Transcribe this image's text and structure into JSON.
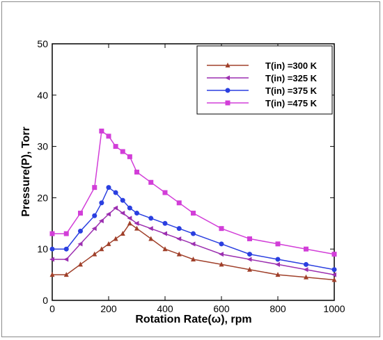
{
  "chart_data": {
    "type": "line",
    "xlabel": "Rotation Rate(ω), rpm",
    "ylabel": "Pressure(P), Torr",
    "xlim": [
      0,
      1000
    ],
    "ylim": [
      0,
      50
    ],
    "xticks": [
      0,
      200,
      400,
      600,
      800,
      1000
    ],
    "yticks": [
      0,
      10,
      20,
      30,
      40,
      50
    ],
    "grid": false,
    "legend_position": "top-right",
    "series": [
      {
        "name": "T(in) =300 K",
        "color": "#a0402a",
        "marker": "triangle-up",
        "x": [
          0,
          50,
          100,
          150,
          175,
          200,
          225,
          250,
          275,
          300,
          350,
          400,
          450,
          500,
          600,
          700,
          800,
          900,
          1000
        ],
        "y": [
          5,
          5,
          7,
          9,
          10,
          11,
          12,
          13,
          15,
          14,
          12,
          10,
          9,
          8,
          7,
          6,
          5,
          4.5,
          4
        ]
      },
      {
        "name": "T(in) =325 K",
        "color": "#9c2fb0",
        "marker": "triangle-left",
        "x": [
          0,
          50,
          100,
          150,
          175,
          200,
          225,
          250,
          275,
          300,
          350,
          400,
          450,
          500,
          600,
          700,
          800,
          900,
          1000
        ],
        "y": [
          8,
          8,
          11,
          14,
          15.5,
          16.8,
          18,
          17,
          16,
          15,
          14,
          13,
          12,
          11,
          9,
          8,
          7,
          6,
          5
        ]
      },
      {
        "name": "T(in) =375 K",
        "color": "#2a3fe0",
        "marker": "circle",
        "x": [
          0,
          50,
          100,
          150,
          175,
          200,
          225,
          250,
          275,
          300,
          350,
          400,
          450,
          500,
          600,
          700,
          800,
          900,
          1000
        ],
        "y": [
          10,
          10,
          13.5,
          16.5,
          19,
          22,
          21,
          19.5,
          18,
          17,
          16,
          15,
          14,
          13,
          11,
          9,
          8,
          7,
          6
        ]
      },
      {
        "name": "T(in) =475 K",
        "color": "#d23ed8",
        "marker": "square",
        "x": [
          0,
          50,
          100,
          150,
          175,
          200,
          225,
          250,
          275,
          300,
          350,
          400,
          450,
          500,
          600,
          700,
          800,
          900,
          1000
        ],
        "y": [
          13,
          13,
          17,
          22,
          33,
          32,
          30,
          29,
          28,
          25,
          23,
          21,
          19,
          17,
          14,
          12,
          11,
          10,
          9
        ]
      }
    ]
  }
}
